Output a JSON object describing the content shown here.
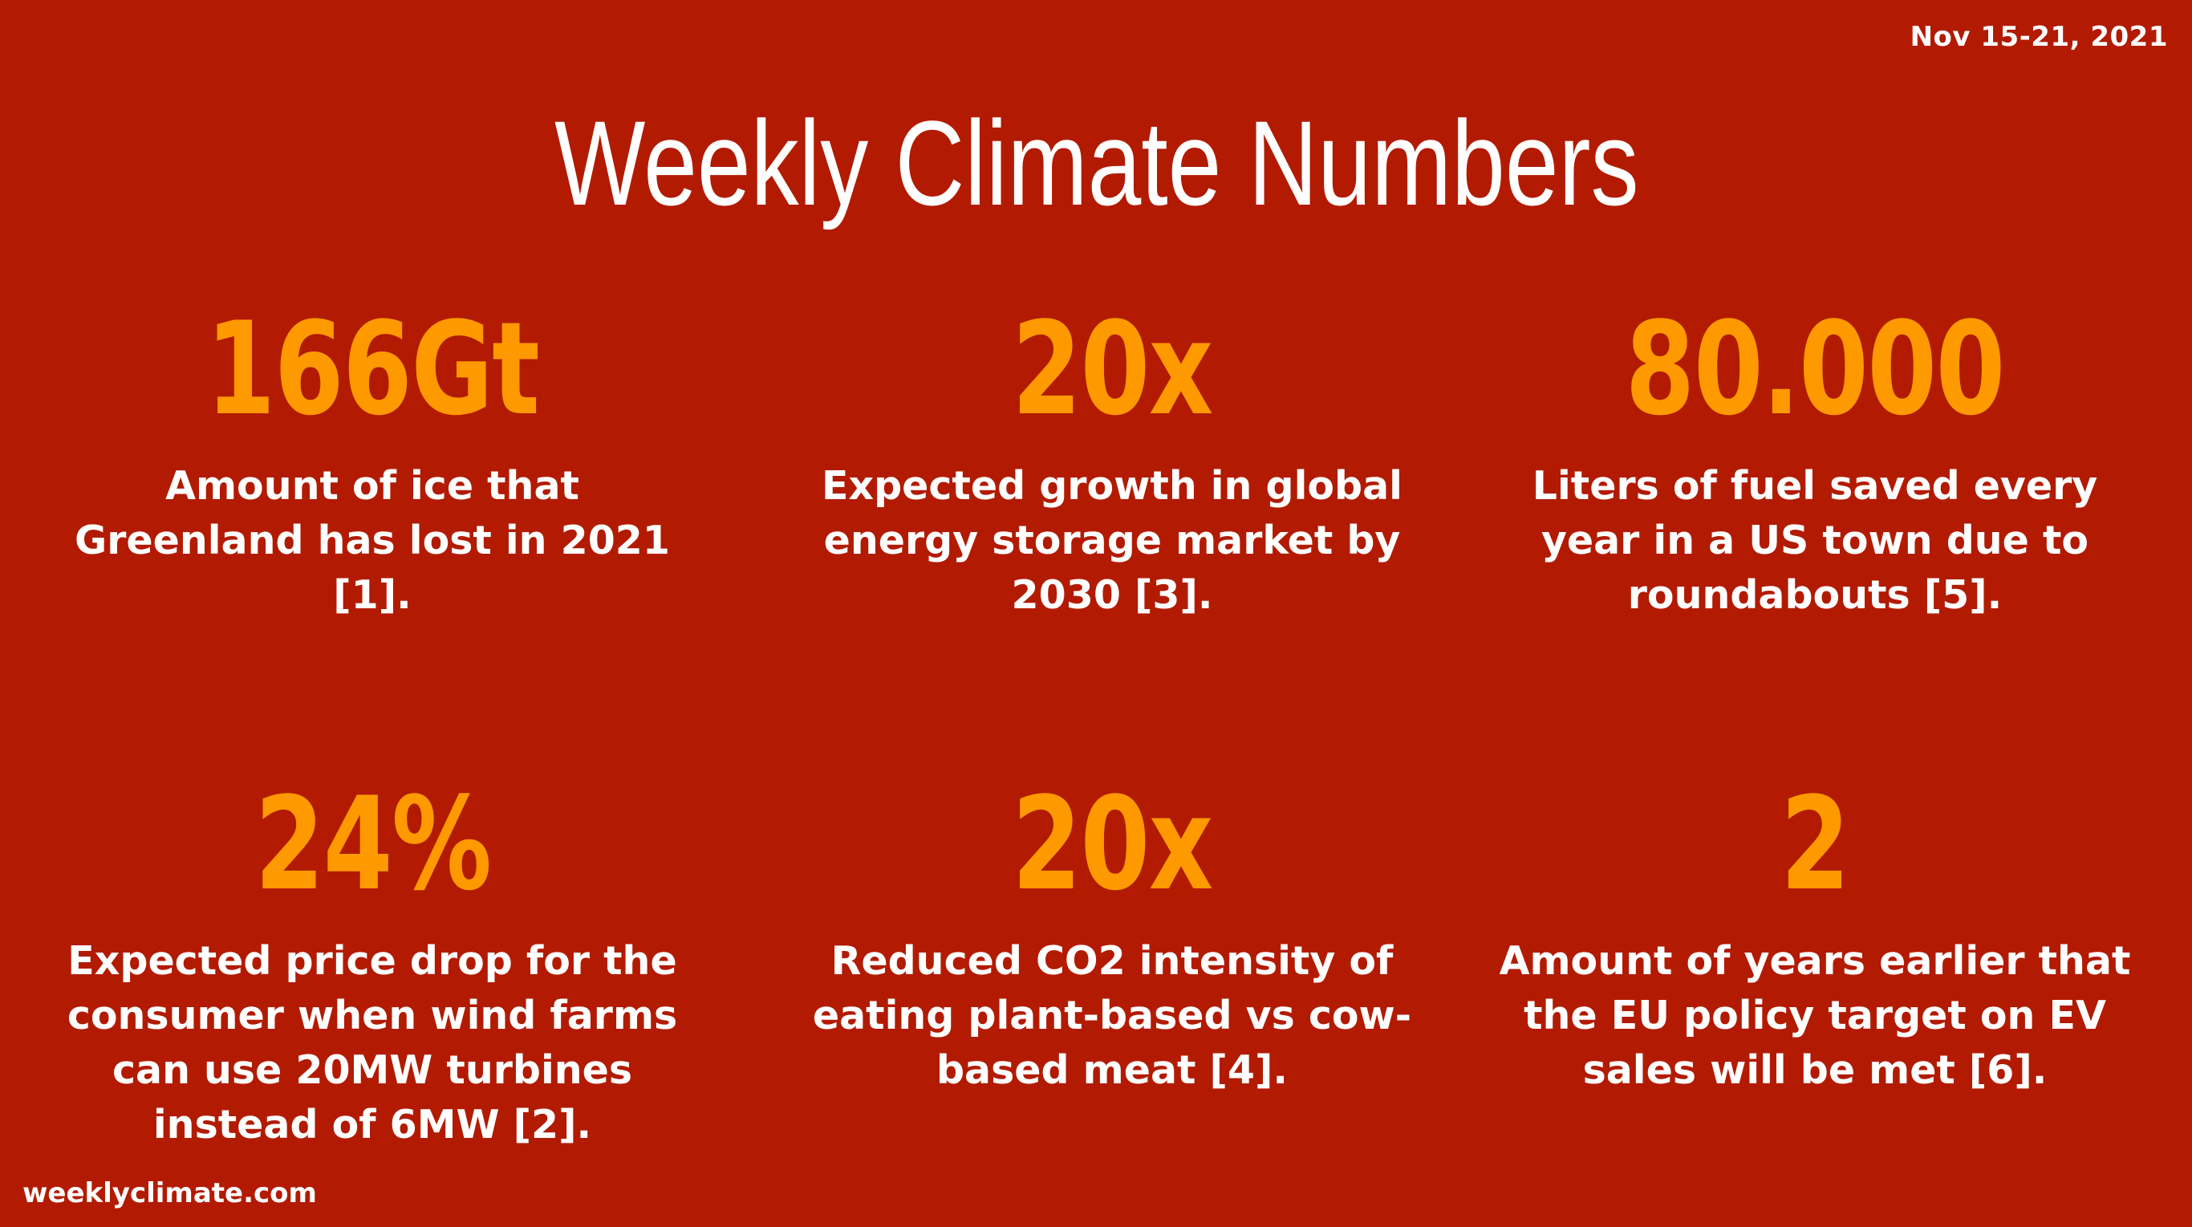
{
  "date": "Nov 15-21, 2021",
  "title": "Weekly Climate Numbers",
  "stats": [
    {
      "number": "166Gt",
      "description": "Amount of ice that Greenland has lost in 2021 [1]."
    },
    {
      "number": "20x",
      "description": "Expected growth in global energy storage market by 2030 [3]."
    },
    {
      "number": "80.000",
      "description": "Liters of fuel saved every year in a US town due to roundabouts [5]."
    },
    {
      "number": "24%",
      "description": "Expected price drop for the consumer when wind farms can use 20MW turbines instead of 6MW [2]."
    },
    {
      "number": "20x",
      "description": "Reduced CO2 intensity of eating plant-based vs cow-based meat [4]."
    },
    {
      "number": "2",
      "description": "Amount of years earlier that the EU policy target on EV sales will be met [6]."
    }
  ],
  "footer": "weeklyclimate.com",
  "colors": {
    "background": "#B21B02",
    "accent": "#FF9900",
    "text": "#FFFFFF"
  }
}
